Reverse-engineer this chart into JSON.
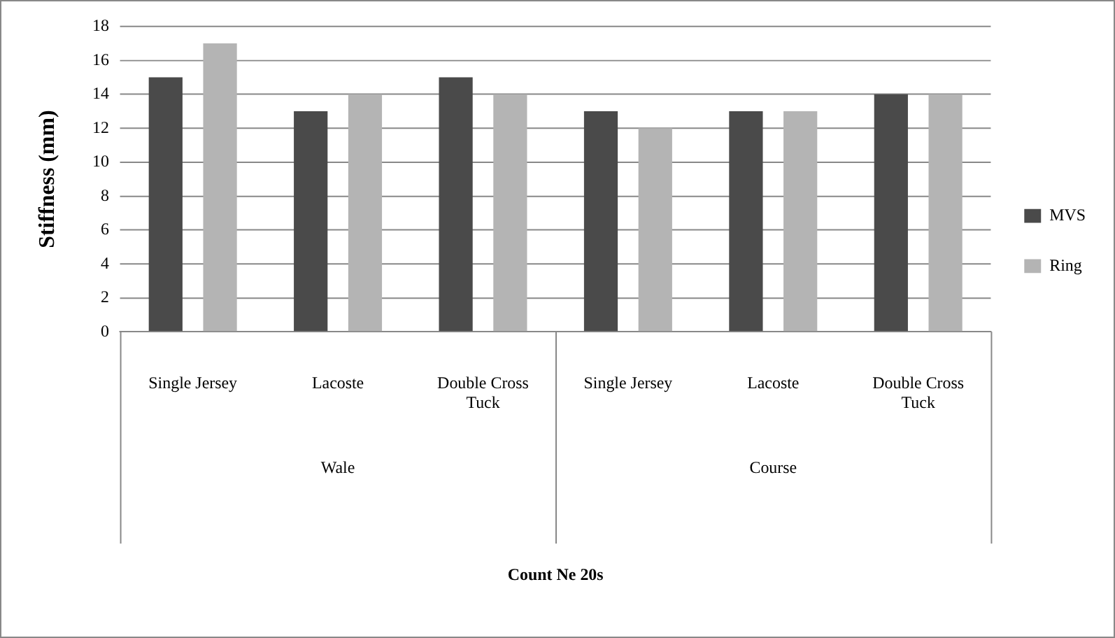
{
  "chart_data": {
    "type": "bar",
    "ylabel": "Stiffness (mm)",
    "categories": [
      "Single Jersey",
      "Lacoste",
      "Double Cross Tuck",
      "Single Jersey",
      "Lacoste",
      "Double Cross Tuck"
    ],
    "annotations": [
      "Wale",
      "Course",
      "Count Ne 20s"
    ],
    "series": [
      {
        "name": "MVS",
        "color": "#4a4a4a",
        "values": [
          15,
          13,
          15,
          13,
          13,
          14
        ]
      },
      {
        "name": "Ring",
        "color": "#b4b4b4",
        "values": [
          17,
          14,
          14,
          12,
          13,
          14
        ]
      }
    ],
    "ylim": [
      0,
      18
    ],
    "yticks": [
      0,
      2,
      4,
      6,
      8,
      10,
      12,
      14,
      16,
      18
    ],
    "grid": "y",
    "legend": "right"
  }
}
